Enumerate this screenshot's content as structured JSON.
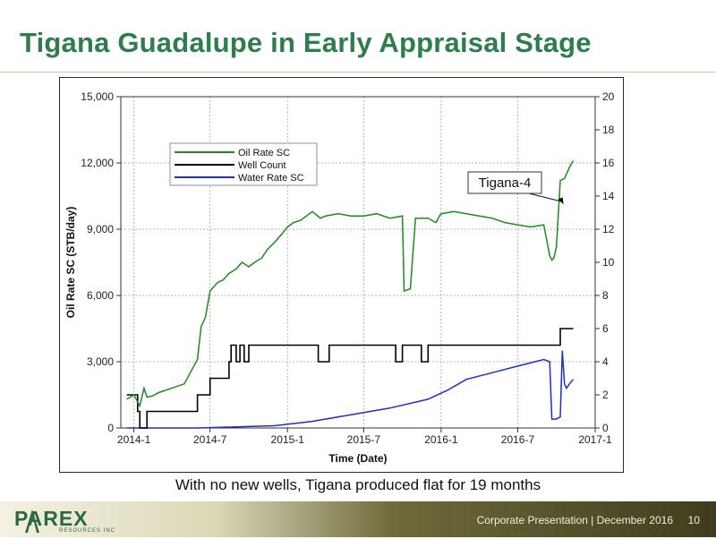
{
  "slide": {
    "title": "Tigana Guadalupe in Early Appraisal Stage",
    "caption": "With no new wells, Tigana produced flat for 19 months",
    "footer_text": "Corporate Presentation | December 2016",
    "page_number": "10",
    "logo_text": "PAREX",
    "logo_sub": "RESOURCES INC"
  },
  "colors": {
    "title": "#2e7d4f",
    "oil": "#1f8a1f",
    "well": "#000000",
    "water": "#1f2fbf"
  },
  "chart_data": {
    "type": "line",
    "xlabel": "Time (Date)",
    "ylabel": "Oil Rate SC (STB/day)",
    "y2label": "Well Count",
    "xlim": [
      "2013-12-01",
      "2017-01-01"
    ],
    "ylim": [
      0,
      15000
    ],
    "y2lim": [
      0,
      20
    ],
    "x_ticks": [
      "2014-1",
      "2014-7",
      "2015-1",
      "2015-7",
      "2016-1",
      "2016-7",
      "2017-1"
    ],
    "y_ticks": [
      "0",
      "3,000",
      "6,000",
      "9,000",
      "12,000",
      "15,000"
    ],
    "y2_ticks": [
      "0",
      "2",
      "4",
      "6",
      "8",
      "10",
      "12",
      "14",
      "16",
      "18",
      "20"
    ],
    "grid": true,
    "legend": {
      "placement": "top-left",
      "entries": [
        "Oil Rate SC",
        "Well Count",
        "Water Rate SC"
      ]
    },
    "annotation": {
      "text": "Tigana-4",
      "x": "2016-10-20",
      "y": 10000
    },
    "series": [
      {
        "name": "Oil Rate SC",
        "axis": "left",
        "x": [
          "2013-12-15",
          "2014-01-01",
          "2014-01-15",
          "2014-01-25",
          "2014-02-01",
          "2014-02-15",
          "2014-03-01",
          "2014-04-01",
          "2014-05-01",
          "2014-05-15",
          "2014-06-01",
          "2014-06-10",
          "2014-06-20",
          "2014-07-01",
          "2014-07-10",
          "2014-07-20",
          "2014-08-01",
          "2014-08-15",
          "2014-09-01",
          "2014-09-15",
          "2014-10-01",
          "2014-10-15",
          "2014-11-01",
          "2014-11-15",
          "2014-12-01",
          "2014-12-15",
          "2015-01-01",
          "2015-01-15",
          "2015-02-01",
          "2015-03-01",
          "2015-03-20",
          "2015-04-01",
          "2015-05-01",
          "2015-06-01",
          "2015-07-01",
          "2015-08-01",
          "2015-09-01",
          "2015-10-01",
          "2015-10-05",
          "2015-10-20",
          "2015-11-01",
          "2015-12-01",
          "2015-12-10",
          "2015-12-20",
          "2015-12-28",
          "2016-01-01",
          "2016-02-01",
          "2016-03-01",
          "2016-04-01",
          "2016-05-01",
          "2016-06-01",
          "2016-07-01",
          "2016-08-01",
          "2016-09-01",
          "2016-09-15",
          "2016-09-20",
          "2016-09-25",
          "2016-10-01",
          "2016-10-10",
          "2016-10-20",
          "2016-10-25",
          "2016-11-01",
          "2016-11-10"
        ],
        "values": [
          1300,
          1500,
          1000,
          1800,
          1400,
          1450,
          1600,
          1800,
          2000,
          2500,
          3100,
          4600,
          5000,
          6200,
          6400,
          6600,
          6700,
          7000,
          7200,
          7500,
          7300,
          7500,
          7700,
          8100,
          8400,
          8700,
          9100,
          9300,
          9400,
          9800,
          9500,
          9600,
          9700,
          9600,
          9600,
          9700,
          9500,
          9600,
          6200,
          6300,
          9500,
          9500,
          9400,
          9300,
          9600,
          9700,
          9800,
          9700,
          9600,
          9500,
          9300,
          9200,
          9100,
          9200,
          7800,
          7600,
          7700,
          8200,
          11200,
          11300,
          11500,
          11800,
          12100
        ]
      },
      {
        "name": "Well Count",
        "axis": "right",
        "step_x": [
          "2013-12-15",
          "2014-01-10",
          "2014-01-15",
          "2014-02-01",
          "2014-04-01",
          "2014-05-15",
          "2014-06-01",
          "2014-06-15",
          "2014-07-01",
          "2014-07-10",
          "2014-07-20",
          "2014-08-01",
          "2014-08-15",
          "2014-08-20",
          "2014-09-01",
          "2014-09-10",
          "2014-09-20",
          "2014-10-01",
          "2015-03-15",
          "2015-04-10",
          "2015-09-15",
          "2015-10-01",
          "2015-11-15",
          "2015-12-01",
          "2016-09-20",
          "2016-10-10",
          "2016-10-25"
        ],
        "step_values": [
          2,
          1,
          0,
          1,
          1,
          1,
          2,
          2,
          3,
          3,
          3,
          3,
          4,
          5,
          4,
          5,
          4,
          5,
          4,
          5,
          4,
          5,
          4,
          5,
          5,
          6,
          6
        ]
      },
      {
        "name": "Water Rate SC",
        "axis": "left",
        "x": [
          "2013-12-15",
          "2014-06-01",
          "2014-09-01",
          "2014-12-01",
          "2015-03-01",
          "2015-06-01",
          "2015-09-01",
          "2015-12-01",
          "2016-01-15",
          "2016-03-01",
          "2016-05-01",
          "2016-07-01",
          "2016-09-01",
          "2016-09-15",
          "2016-09-20",
          "2016-09-30",
          "2016-10-10",
          "2016-10-15",
          "2016-10-20",
          "2016-10-25",
          "2016-11-01",
          "2016-11-10"
        ],
        "values": [
          0,
          0,
          50,
          100,
          300,
          600,
          900,
          1300,
          1700,
          2200,
          2500,
          2800,
          3100,
          3000,
          400,
          400,
          500,
          3500,
          2000,
          1800,
          2000,
          2200
        ]
      }
    ]
  }
}
